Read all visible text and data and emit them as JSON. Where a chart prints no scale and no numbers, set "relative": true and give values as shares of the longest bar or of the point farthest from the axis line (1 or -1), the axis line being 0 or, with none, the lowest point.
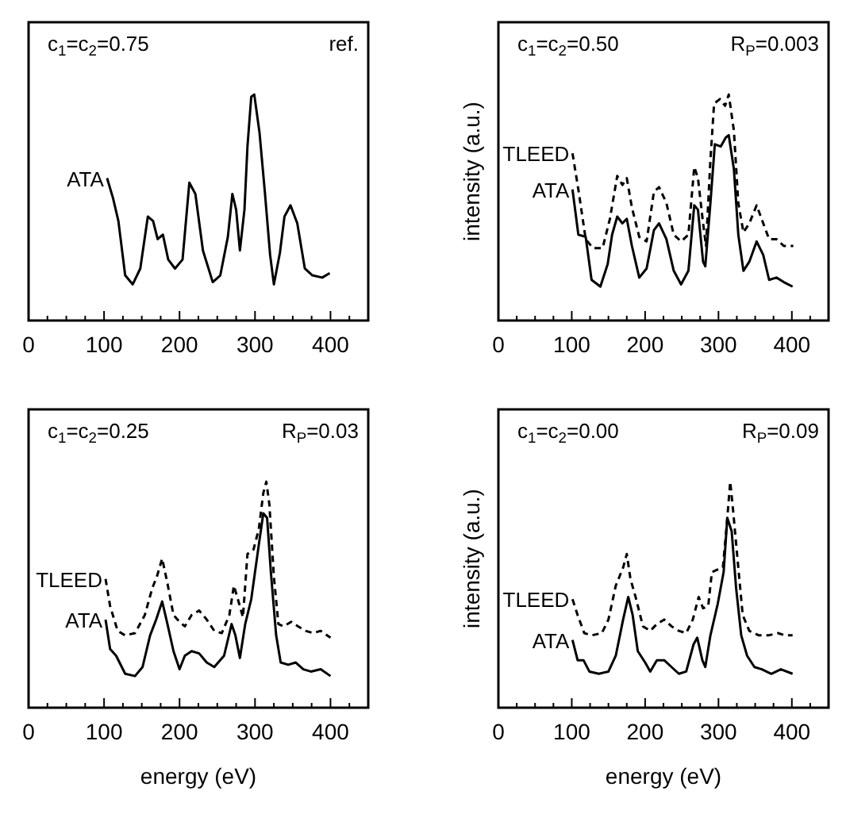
{
  "chart_data": [
    {
      "type": "line",
      "relative": true,
      "annotations": [
        "c$_{1}$=c$_{2}$=0.75",
        "ref."
      ],
      "xlim": [
        0,
        450
      ],
      "xticks": [
        0,
        {
          "value": 25,
          "label": null
        },
        {
          "value": 50,
          "label": null
        },
        {
          "value": 75,
          "label": null
        },
        100,
        {
          "value": 125,
          "label": null
        },
        {
          "value": 150,
          "label": null
        },
        {
          "value": 175,
          "label": null
        },
        200,
        {
          "value": 225,
          "label": null
        },
        {
          "value": 250,
          "label": null
        },
        {
          "value": 275,
          "label": null
        },
        300,
        {
          "value": 325,
          "label": null
        },
        {
          "value": 350,
          "label": null
        },
        {
          "value": 375,
          "label": null
        },
        400,
        {
          "value": 425,
          "label": null
        }
      ],
      "series": [
        {
          "name": "ATA",
          "color": "#000000",
          "line_style": "solid",
          "x": [
            104,
            112,
            119,
            128,
            138,
            148,
            158,
            165,
            171,
            178,
            185,
            194,
            204,
            213,
            221,
            231,
            244,
            254,
            264,
            270,
            275,
            280,
            286,
            290,
            295,
            299,
            306,
            313,
            320,
            325,
            333,
            339,
            347,
            356,
            366,
            376,
            389,
            399
          ],
          "values": [
            0.63,
            0.54,
            0.44,
            0.2,
            0.16,
            0.23,
            0.46,
            0.44,
            0.36,
            0.38,
            0.27,
            0.23,
            0.27,
            0.61,
            0.56,
            0.31,
            0.17,
            0.2,
            0.37,
            0.56,
            0.49,
            0.31,
            0.49,
            0.77,
            0.99,
            1.0,
            0.83,
            0.57,
            0.29,
            0.16,
            0.3,
            0.46,
            0.51,
            0.43,
            0.23,
            0.2,
            0.19,
            0.21
          ]
        }
      ]
    },
    {
      "type": "line",
      "relative": true,
      "ylabel": "intensity (a.u.)",
      "annotations": [
        "c$_{1}$=c$_{2}$=0.50",
        "R$_{P}$=0.003"
      ],
      "xlim": [
        0,
        450
      ],
      "xticks": [
        0,
        {
          "value": 25,
          "label": null
        },
        {
          "value": 50,
          "label": null
        },
        {
          "value": 75,
          "label": null
        },
        100,
        {
          "value": 125,
          "label": null
        },
        {
          "value": 150,
          "label": null
        },
        {
          "value": 175,
          "label": null
        },
        200,
        {
          "value": 225,
          "label": null
        },
        {
          "value": 250,
          "label": null
        },
        {
          "value": 275,
          "label": null
        },
        300,
        {
          "value": 325,
          "label": null
        },
        {
          "value": 350,
          "label": null
        },
        {
          "value": 375,
          "label": null
        },
        400,
        {
          "value": 425,
          "label": null
        }
      ],
      "series": [
        {
          "name": "TLEED",
          "color": "#000000",
          "line_style": "dashed",
          "x": [
            101,
            109,
            119,
            129,
            142,
            152,
            162,
            169,
            175,
            182,
            192,
            202,
            212,
            219,
            229,
            239,
            249,
            259,
            267,
            272,
            279,
            283,
            289,
            294,
            302,
            309,
            314,
            321,
            327,
            334,
            342,
            352,
            361,
            369,
            379,
            389,
            402
          ],
          "values": [
            0.74,
            0.58,
            0.36,
            0.32,
            0.32,
            0.45,
            0.64,
            0.6,
            0.63,
            0.5,
            0.37,
            0.35,
            0.57,
            0.59,
            0.52,
            0.38,
            0.35,
            0.38,
            0.68,
            0.63,
            0.43,
            0.33,
            0.71,
            0.96,
            0.98,
            0.95,
            1.0,
            0.84,
            0.52,
            0.39,
            0.43,
            0.51,
            0.43,
            0.36,
            0.36,
            0.33,
            0.33
          ]
        },
        {
          "name": "ATA",
          "color": "#000000",
          "line_style": "solid",
          "x": [
            101,
            109,
            119,
            127,
            139,
            149,
            155,
            162,
            169,
            175,
            182,
            192,
            202,
            212,
            219,
            229,
            239,
            249,
            259,
            267,
            272,
            279,
            282,
            289,
            295,
            303,
            310,
            314,
            321,
            327,
            334,
            342,
            352,
            361,
            369,
            379,
            389,
            401
          ],
          "values": [
            0.58,
            0.38,
            0.37,
            0.18,
            0.15,
            0.25,
            0.38,
            0.46,
            0.43,
            0.45,
            0.33,
            0.19,
            0.23,
            0.4,
            0.43,
            0.36,
            0.22,
            0.16,
            0.22,
            0.51,
            0.49,
            0.26,
            0.24,
            0.52,
            0.78,
            0.77,
            0.81,
            0.82,
            0.67,
            0.38,
            0.22,
            0.26,
            0.35,
            0.29,
            0.18,
            0.19,
            0.17,
            0.15
          ]
        }
      ]
    },
    {
      "type": "line",
      "relative": true,
      "xlabel": "energy (eV)",
      "annotations": [
        "c$_{1}$=c$_{2}$=0.25",
        "R$_{P}$=0.03"
      ],
      "xlim": [
        0,
        450
      ],
      "xticks": [
        0,
        {
          "value": 25,
          "label": null
        },
        {
          "value": 50,
          "label": null
        },
        {
          "value": 75,
          "label": null
        },
        100,
        {
          "value": 125,
          "label": null
        },
        {
          "value": 150,
          "label": null
        },
        {
          "value": 175,
          "label": null
        },
        200,
        {
          "value": 225,
          "label": null
        },
        {
          "value": 250,
          "label": null
        },
        {
          "value": 275,
          "label": null
        },
        300,
        {
          "value": 325,
          "label": null
        },
        {
          "value": 350,
          "label": null
        },
        {
          "value": 375,
          "label": null
        },
        400,
        {
          "value": 425,
          "label": null
        }
      ],
      "series": [
        {
          "name": "TLEED",
          "color": "#000000",
          "line_style": "dashed",
          "x": [
            102,
            108,
            118,
            128,
            141,
            154,
            164,
            170,
            177,
            184,
            192,
            200,
            207,
            216,
            226,
            236,
            246,
            256,
            266,
            272,
            279,
            284,
            290,
            298,
            305,
            311,
            315,
            319,
            325,
            331,
            338,
            348,
            357,
            367,
            377,
            387,
            400
          ],
          "values": [
            0.57,
            0.45,
            0.34,
            0.32,
            0.33,
            0.41,
            0.53,
            0.58,
            0.66,
            0.55,
            0.41,
            0.38,
            0.36,
            0.41,
            0.43,
            0.39,
            0.34,
            0.33,
            0.41,
            0.54,
            0.46,
            0.4,
            0.68,
            0.7,
            0.79,
            0.95,
            1.0,
            0.9,
            0.58,
            0.37,
            0.36,
            0.38,
            0.36,
            0.34,
            0.33,
            0.34,
            0.31
          ]
        },
        {
          "name": "ATA",
          "color": "#000000",
          "line_style": "solid",
          "x": [
            102,
            108,
            116,
            128,
            141,
            151,
            161,
            169,
            177,
            184,
            192,
            200,
            207,
            216,
            226,
            236,
            246,
            259,
            269,
            274,
            280,
            287,
            295,
            305,
            311,
            316,
            321,
            328,
            334,
            344,
            354,
            364,
            374,
            387,
            400
          ],
          "values": [
            0.39,
            0.26,
            0.23,
            0.15,
            0.14,
            0.18,
            0.32,
            0.39,
            0.47,
            0.37,
            0.25,
            0.17,
            0.23,
            0.25,
            0.24,
            0.2,
            0.18,
            0.23,
            0.37,
            0.32,
            0.22,
            0.37,
            0.48,
            0.72,
            0.86,
            0.84,
            0.6,
            0.32,
            0.2,
            0.19,
            0.2,
            0.17,
            0.16,
            0.17,
            0.14
          ]
        }
      ]
    },
    {
      "type": "line",
      "relative": true,
      "xlabel": "energy (eV)",
      "ylabel": "intensity (a.u.)",
      "annotations": [
        "c$_{1}$=c$_{2}$=0.00",
        "R$_{P}$=0.09"
      ],
      "xlim": [
        0,
        450
      ],
      "xticks": [
        0,
        {
          "value": 25,
          "label": null
        },
        {
          "value": 50,
          "label": null
        },
        {
          "value": 75,
          "label": null
        },
        100,
        {
          "value": 125,
          "label": null
        },
        {
          "value": 150,
          "label": null
        },
        {
          "value": 175,
          "label": null
        },
        200,
        {
          "value": 225,
          "label": null
        },
        {
          "value": 250,
          "label": null
        },
        {
          "value": 275,
          "label": null
        },
        300,
        {
          "value": 325,
          "label": null
        },
        {
          "value": 350,
          "label": null
        },
        {
          "value": 375,
          "label": null
        },
        400,
        {
          "value": 425,
          "label": null
        }
      ],
      "series": [
        {
          "name": "TLEED",
          "color": "#000000",
          "line_style": "dashed",
          "x": [
            101,
            108,
            117,
            127,
            141,
            150,
            160,
            170,
            175,
            180,
            187,
            197,
            207,
            216,
            226,
            236,
            246,
            256,
            265,
            273,
            279,
            286,
            291,
            298,
            306,
            311,
            316,
            320,
            327,
            333,
            342,
            355,
            368,
            381,
            391,
            401
          ],
          "values": [
            0.48,
            0.41,
            0.33,
            0.32,
            0.33,
            0.39,
            0.54,
            0.62,
            0.68,
            0.57,
            0.49,
            0.36,
            0.34,
            0.37,
            0.39,
            0.36,
            0.34,
            0.33,
            0.39,
            0.49,
            0.44,
            0.45,
            0.6,
            0.61,
            0.62,
            0.8,
            1.0,
            0.87,
            0.62,
            0.41,
            0.34,
            0.32,
            0.32,
            0.33,
            0.32,
            0.32
          ]
        },
        {
          "name": "ATA",
          "color": "#000000",
          "line_style": "solid",
          "x": [
            101,
            108,
            116,
            124,
            137,
            150,
            160,
            170,
            177,
            183,
            190,
            200,
            207,
            216,
            226,
            236,
            246,
            256,
            266,
            271,
            278,
            282,
            289,
            299,
            307,
            312,
            318,
            324,
            331,
            339,
            349,
            359,
            372,
            385,
            401
          ],
          "values": [
            0.3,
            0.21,
            0.21,
            0.16,
            0.15,
            0.16,
            0.23,
            0.39,
            0.49,
            0.41,
            0.25,
            0.2,
            0.16,
            0.21,
            0.21,
            0.18,
            0.15,
            0.16,
            0.28,
            0.31,
            0.21,
            0.18,
            0.32,
            0.46,
            0.6,
            0.84,
            0.78,
            0.53,
            0.32,
            0.23,
            0.18,
            0.17,
            0.15,
            0.17,
            0.15
          ]
        }
      ]
    }
  ]
}
